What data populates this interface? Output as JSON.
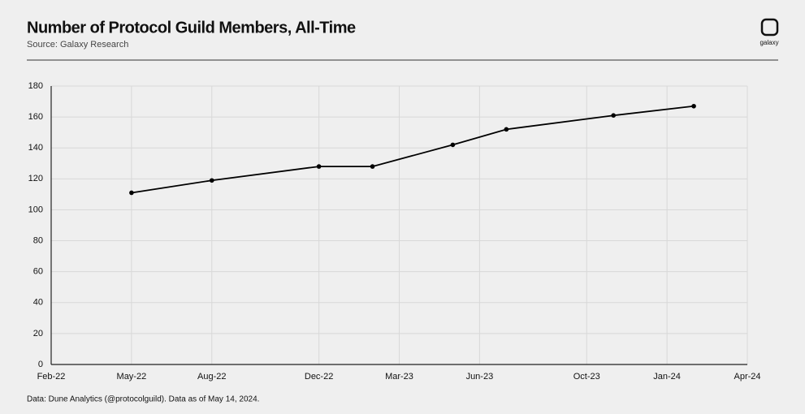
{
  "chart_data": {
    "type": "line",
    "title": "Number of Protocol Guild Members, All-Time",
    "subtitle": "Source: Galaxy Research",
    "footnote": "Data: Dune Analytics (@protocolguild). Data as of May 14, 2024.",
    "logo_text": "galaxy",
    "x": [
      "2022-05",
      "2022-08",
      "2022-12",
      "2023-02",
      "2023-05",
      "2023-07",
      "2023-11",
      "2024-02"
    ],
    "series": [
      {
        "name": "Members",
        "color": "#000000",
        "values": [
          111,
          119,
          128,
          128,
          142,
          152,
          161,
          167
        ]
      }
    ],
    "xlim": [
      "2022-02",
      "2024-04"
    ],
    "xticks": [
      {
        "value": "2022-02",
        "label": "Feb-22"
      },
      {
        "value": "2022-05",
        "label": "May-22"
      },
      {
        "value": "2022-08",
        "label": "Aug-22"
      },
      {
        "value": "2022-12",
        "label": "Dec-22"
      },
      {
        "value": "2023-03",
        "label": "Mar-23"
      },
      {
        "value": "2023-06",
        "label": "Jun-23"
      },
      {
        "value": "2023-10",
        "label": "Oct-23"
      },
      {
        "value": "2024-01",
        "label": "Jan-24"
      },
      {
        "value": "2024-04",
        "label": "Apr-24"
      }
    ],
    "ylim": [
      0,
      180
    ],
    "yticks": [
      0,
      20,
      40,
      60,
      80,
      100,
      120,
      140,
      160,
      180
    ],
    "grid": true
  }
}
